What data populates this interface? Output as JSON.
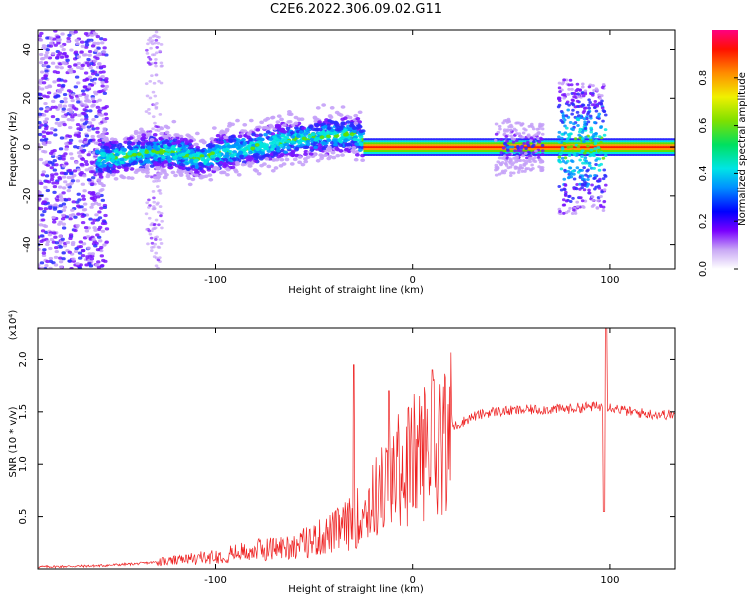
{
  "title": "C2E6.2022.306.09.02.G11",
  "chart_data": [
    {
      "type": "heatmap",
      "xlabel": "Height of straight line (km)",
      "ylabel": "Frequency (Hz)",
      "xlim": [
        -190,
        133
      ],
      "ylim": [
        -50,
        48
      ],
      "xticks": [
        -100,
        0,
        100
      ],
      "yticks": [
        -40,
        -20,
        0,
        20,
        40
      ],
      "colorbar": {
        "label": "Normalized spectral amplitude",
        "range": [
          0,
          1
        ],
        "ticks": [
          "0.0",
          "0.2",
          "0.4",
          "0.6",
          "0.8"
        ]
      },
      "ridge": {
        "x": [
          -160,
          -150,
          -140,
          -130,
          -120,
          -110,
          -100,
          -90,
          -80,
          -70,
          -60,
          -50,
          -40,
          -30,
          -20,
          0,
          20,
          50,
          80,
          100,
          133
        ],
        "y": [
          -5,
          -4,
          -3,
          -2,
          -2,
          -5,
          -3,
          -1,
          0,
          2,
          3,
          4,
          5,
          5,
          0,
          0,
          0,
          0,
          0,
          0,
          0
        ]
      }
    },
    {
      "type": "line",
      "xlabel": "Height of straight line (km)",
      "ylabel": "SNR (10 * v/v)",
      "scale_label": "(x10⁴)",
      "xlim": [
        -190,
        133
      ],
      "ylim": [
        0,
        2.3
      ],
      "xticks": [
        -100,
        0,
        100
      ],
      "yticks": [
        0.5,
        1.0,
        1.5,
        2.0
      ],
      "series": [
        {
          "color": "#ee2222",
          "trend": {
            "x": [
              -190,
              -160,
              -140,
              -120,
              -100,
              -80,
              -60,
              -50,
              -40,
              -30,
              -20,
              -10,
              0,
              10,
              20,
              30,
              40,
              60,
              80,
              90,
              100,
              110,
              120,
              133
            ],
            "y": [
              0.02,
              0.03,
              0.05,
              0.08,
              0.12,
              0.18,
              0.22,
              0.28,
              0.35,
              0.45,
              0.65,
              0.9,
              1.05,
              1.2,
              1.35,
              1.45,
              1.5,
              1.52,
              1.53,
              1.55,
              1.55,
              1.5,
              1.48,
              1.47
            ]
          },
          "spikes": [
            {
              "x": -30,
              "y": 1.95
            },
            {
              "x": -12,
              "y": 1.7
            },
            {
              "x": 10,
              "y": 1.9
            },
            {
              "x": 98,
              "y": 2.3
            },
            {
              "x": 97,
              "y": 0.55
            }
          ]
        }
      ]
    }
  ]
}
